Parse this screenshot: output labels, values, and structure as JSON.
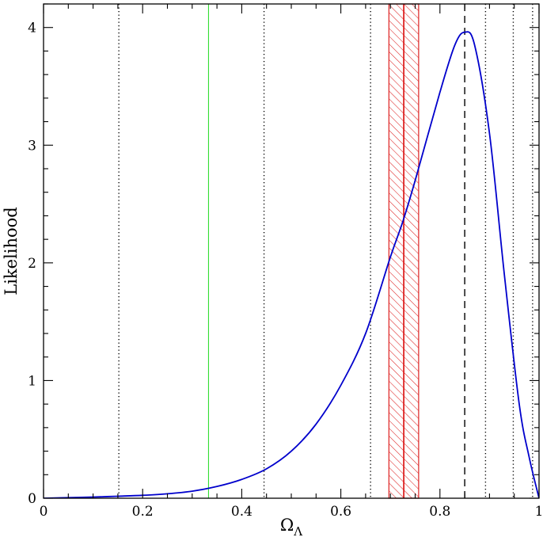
{
  "chart_data": {
    "type": "line",
    "xlabel": "Ω",
    "xlabel_subscript": "Λ",
    "ylabel": "Likelihood",
    "xlim": [
      0,
      1
    ],
    "ylim": [
      0,
      4.2
    ],
    "x_ticks": [
      {
        "value": 0,
        "label": "0"
      },
      {
        "value": 0.2,
        "label": "0.2"
      },
      {
        "value": 0.4,
        "label": "0.4"
      },
      {
        "value": 0.6,
        "label": "0.6"
      },
      {
        "value": 0.8,
        "label": "0.8"
      },
      {
        "value": 1.0,
        "label": "1"
      }
    ],
    "y_ticks": [
      {
        "value": 0,
        "label": "0"
      },
      {
        "value": 1,
        "label": "1"
      },
      {
        "value": 2,
        "label": "2"
      },
      {
        "value": 3,
        "label": "3"
      },
      {
        "value": 4,
        "label": "4"
      }
    ],
    "series": [
      {
        "color": "#0000cc",
        "x": [
          0,
          0.05,
          0.1,
          0.15,
          0.2,
          0.25,
          0.3,
          0.35,
          0.4,
          0.45,
          0.5,
          0.55,
          0.6,
          0.65,
          0.7,
          0.725,
          0.75,
          0.8,
          0.83,
          0.85,
          0.87,
          0.9,
          0.93,
          0.96,
          0.98,
          1.0
        ],
        "y": [
          0,
          0.005,
          0.01,
          0.017,
          0.025,
          0.038,
          0.06,
          0.1,
          0.16,
          0.25,
          0.4,
          0.63,
          0.96,
          1.4,
          2.05,
          2.35,
          2.7,
          3.45,
          3.85,
          3.96,
          3.85,
          3.1,
          1.9,
          0.8,
          0.35,
          0
        ]
      }
    ],
    "vertical_lines": [
      {
        "x": 0.152,
        "style": "dotted",
        "color": "#000000"
      },
      {
        "x": 0.445,
        "style": "dotted",
        "color": "#000000"
      },
      {
        "x": 0.66,
        "style": "dotted",
        "color": "#000000"
      },
      {
        "x": 0.892,
        "style": "dotted",
        "color": "#000000"
      },
      {
        "x": 0.948,
        "style": "dotted",
        "color": "#000000"
      },
      {
        "x": 0.987,
        "style": "dotted",
        "color": "#000000"
      },
      {
        "x": 0.333,
        "style": "solid",
        "color": "#33dd33"
      },
      {
        "x": 0.727,
        "style": "solid",
        "color": "#dd2222"
      },
      {
        "x": 0.85,
        "style": "dashed",
        "color": "#000000"
      }
    ],
    "shaded_band": {
      "x_min": 0.697,
      "x_max": 0.757,
      "pattern": "hatched",
      "color": "#dd2222"
    }
  }
}
